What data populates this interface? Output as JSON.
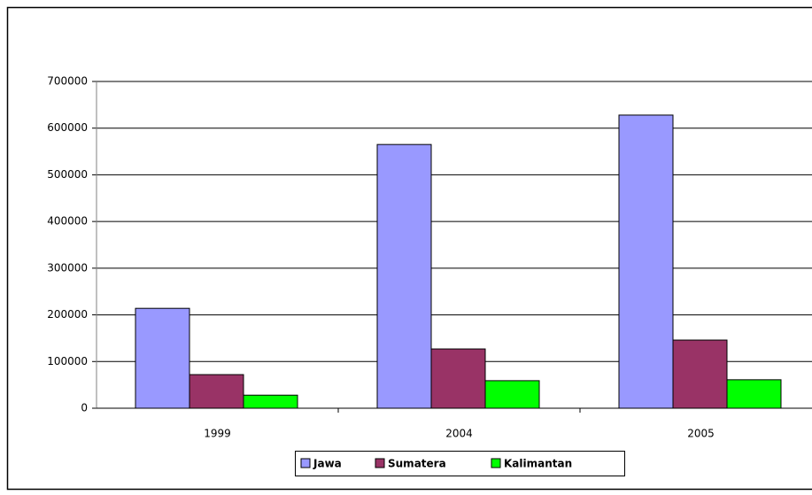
{
  "chart_data": {
    "type": "bar",
    "categories": [
      "1999",
      "2004",
      "2005"
    ],
    "series": [
      {
        "name": "Jawa",
        "color": "#9999ff",
        "values": [
          214000,
          565000,
          628000
        ]
      },
      {
        "name": "Sumatera",
        "color": "#993366",
        "values": [
          72000,
          127000,
          146000
        ]
      },
      {
        "name": "Kalimantan",
        "color": "#00ff00",
        "values": [
          28000,
          59000,
          61000
        ]
      }
    ],
    "ylim": [
      0,
      700000
    ],
    "yticks": [
      0,
      100000,
      200000,
      300000,
      400000,
      500000,
      600000,
      700000
    ],
    "grid": true,
    "legend": "bottom"
  }
}
